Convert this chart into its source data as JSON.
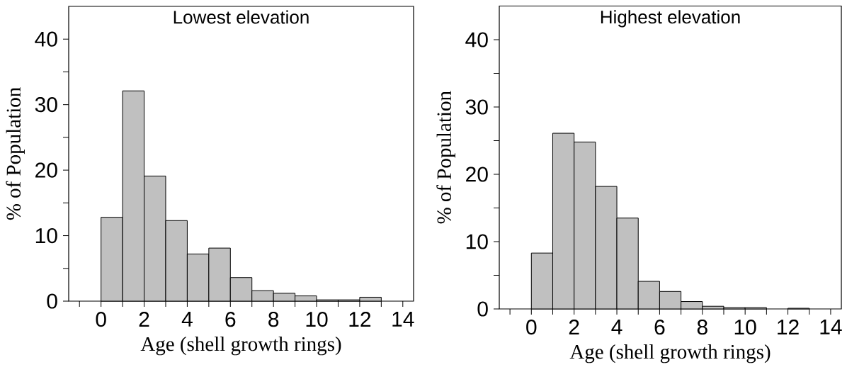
{
  "chart_data": [
    {
      "type": "histogram",
      "title": "Lowest elevation",
      "xlabel": "Age (shell growth rings)",
      "ylabel": "% of Population",
      "bins": [
        0,
        1,
        2,
        3,
        4,
        5,
        6,
        7,
        8,
        9,
        10,
        11,
        12,
        13,
        14
      ],
      "values": [
        12.8,
        32.1,
        19.1,
        12.3,
        7.2,
        8.1,
        3.6,
        1.6,
        1.2,
        0.8,
        0.2,
        0.2,
        0.6,
        0
      ],
      "color": "#c0c0c0",
      "xlim": [
        -1.5,
        14.5
      ],
      "ylim": [
        0,
        45
      ],
      "xticks": [
        {
          "value": -1,
          "label": null
        },
        0,
        {
          "value": 1,
          "label": null
        },
        2,
        {
          "value": 3,
          "label": null
        },
        4,
        {
          "value": 5,
          "label": null
        },
        6,
        {
          "value": 7,
          "label": null
        },
        8,
        {
          "value": 9,
          "label": null
        },
        10,
        {
          "value": 11,
          "label": null
        },
        12,
        {
          "value": 13,
          "label": null
        },
        14
      ],
      "yticks": [
        0,
        {
          "value": 5,
          "label": null
        },
        10,
        {
          "value": 15,
          "label": null
        },
        20,
        {
          "value": 25,
          "label": null
        },
        30,
        {
          "value": 35,
          "label": null
        },
        40
      ]
    },
    {
      "type": "histogram",
      "title": "Highest elevation",
      "xlabel": "Age (shell growth rings)",
      "ylabel": "% of Population",
      "bins": [
        0,
        1,
        2,
        3,
        4,
        5,
        6,
        7,
        8,
        9,
        10,
        11,
        12,
        13,
        14
      ],
      "values": [
        8.3,
        26.1,
        24.8,
        18.2,
        13.5,
        4.1,
        2.6,
        1.1,
        0.4,
        0.2,
        0.2,
        0,
        0.1,
        0
      ],
      "color": "#c0c0c0",
      "xlim": [
        -1.5,
        14.5
      ],
      "ylim": [
        0,
        45
      ],
      "xticks": [
        {
          "value": -1,
          "label": null
        },
        0,
        {
          "value": 1,
          "label": null
        },
        2,
        {
          "value": 3,
          "label": null
        },
        4,
        {
          "value": 5,
          "label": null
        },
        6,
        {
          "value": 7,
          "label": null
        },
        8,
        {
          "value": 9,
          "label": null
        },
        10,
        {
          "value": 11,
          "label": null
        },
        12,
        {
          "value": 13,
          "label": null
        },
        14
      ],
      "yticks": [
        0,
        {
          "value": 5,
          "label": null
        },
        10,
        {
          "value": 15,
          "label": null
        },
        20,
        {
          "value": 25,
          "label": null
        },
        30,
        {
          "value": 35,
          "label": null
        },
        40
      ]
    }
  ]
}
